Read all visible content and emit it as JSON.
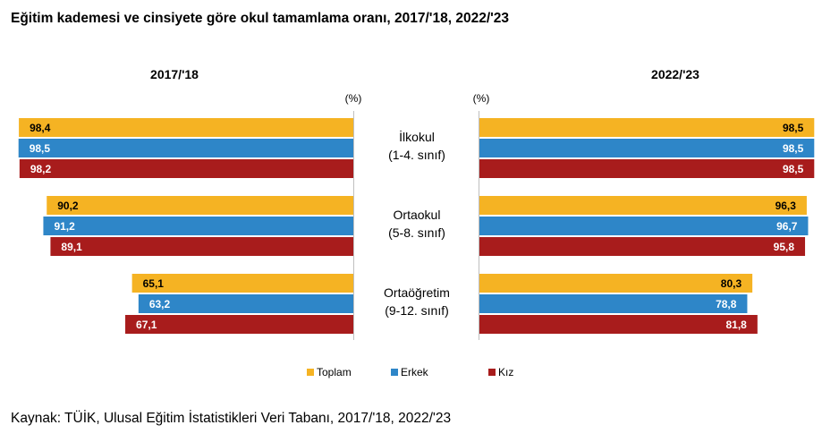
{
  "title": "Eğitim kademesi ve cinsiyete göre okul tamamlama oranı, 2017/'18, 2022/'23",
  "source": "Kaynak: TÜİK, Ulusal Eğitim İstatistikleri Veri Tabanı, 2017/'18, 2022/'23",
  "colors": {
    "Toplam": "#f5b323",
    "Erkek": "#2e86c8",
    "Kız": "#a81c1c"
  },
  "chart_data": {
    "type": "bar",
    "orientation": "horizontal-butterfly",
    "unit": "(%)",
    "categories": [
      {
        "line1": "İlkokul",
        "line2": "(1-4. sınıf)"
      },
      {
        "line1": "Ortaokul",
        "line2": "(5-8. sınıf)"
      },
      {
        "line1": "Ortaöğretim",
        "line2": "(9-12. sınıf)"
      }
    ],
    "legend": [
      "Toplam",
      "Erkek",
      "Kız"
    ],
    "legend_position": "bottom",
    "panels": [
      {
        "title": "2017/'18",
        "series": [
          {
            "name": "Toplam",
            "values": [
              98.4,
              90.2,
              65.1
            ]
          },
          {
            "name": "Erkek",
            "values": [
              98.5,
              91.2,
              63.2
            ]
          },
          {
            "name": "Kız",
            "values": [
              98.2,
              89.1,
              67.1
            ]
          }
        ]
      },
      {
        "title": "2022/'23",
        "series": [
          {
            "name": "Toplam",
            "values": [
              98.5,
              96.3,
              80.3
            ]
          },
          {
            "name": "Erkek",
            "values": [
              98.5,
              96.7,
              78.8
            ]
          },
          {
            "name": "Kız",
            "values": [
              98.5,
              95.8,
              81.8
            ]
          }
        ]
      }
    ],
    "xlim": [
      0,
      100
    ],
    "grid": false
  }
}
